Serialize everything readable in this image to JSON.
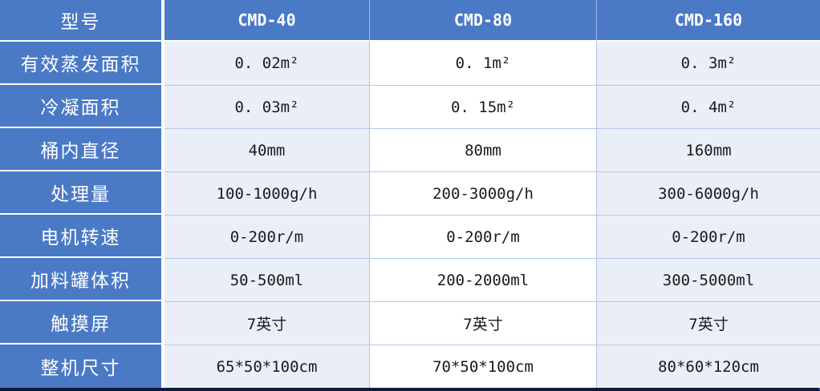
{
  "table": {
    "header": {
      "label": "型号",
      "columns": [
        "CMD-40",
        "CMD-80",
        "CMD-160"
      ]
    },
    "rows": [
      {
        "label": "有效蒸发面积",
        "values": [
          "0. 02m²",
          "0. 1m²",
          "0. 3m²"
        ]
      },
      {
        "label": "冷凝面积",
        "values": [
          "0. 03m²",
          "0. 15m²",
          "0. 4m²"
        ]
      },
      {
        "label": "桶内直径",
        "values": [
          "40mm",
          "80mm",
          "160mm"
        ]
      },
      {
        "label": "处理量",
        "values": [
          "100-1000g/h",
          "200-3000g/h",
          "300-6000g/h"
        ]
      },
      {
        "label": "电机转速",
        "values": [
          "0-200r/m",
          "0-200r/m",
          "0-200r/m"
        ]
      },
      {
        "label": "加料罐体积",
        "values": [
          "50-500ml",
          "200-2000ml",
          "300-5000ml"
        ]
      },
      {
        "label": "触摸屏",
        "values": [
          "7英寸",
          "7英寸",
          "7英寸"
        ]
      },
      {
        "label": "整机尺寸",
        "values": [
          "65*50*100cm",
          "70*50*100cm",
          "80*60*120cm"
        ]
      }
    ],
    "colors": {
      "header_blue": "#4a79c6",
      "light_cell": "#eaeef7",
      "white_cell": "#ffffff",
      "gridline": "#b4c7e7",
      "bottom_border": "#0d1b3c",
      "right_border": "#4472c4"
    }
  }
}
